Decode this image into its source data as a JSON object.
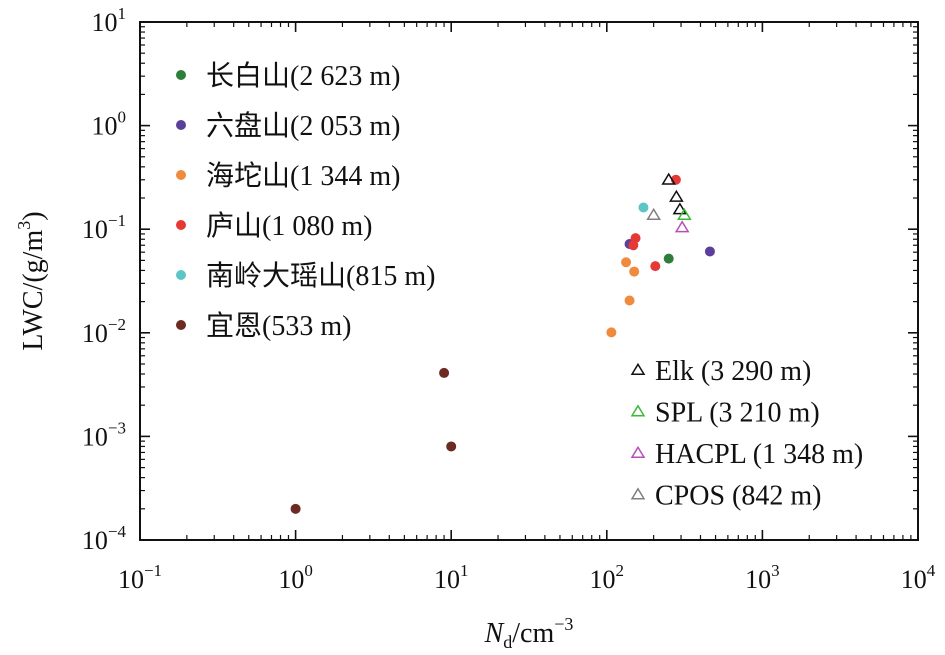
{
  "chart_data": {
    "type": "scatter",
    "xscale": "log",
    "yscale": "log",
    "xlim": [
      0.1,
      10000
    ],
    "ylim": [
      0.0001,
      10
    ],
    "grid": false,
    "xlabel": {
      "main": "N",
      "sub": "d",
      "unit": "/cm",
      "exp": "−3"
    },
    "ylabel": {
      "main": "LWC/(g/m",
      "exp": "3",
      "tail": ")"
    },
    "x_ticks": [
      {
        "base": "10",
        "exp": "−1",
        "value": 0.1
      },
      {
        "base": "10",
        "exp": "0",
        "value": 1
      },
      {
        "base": "10",
        "exp": "1",
        "value": 10
      },
      {
        "base": "10",
        "exp": "2",
        "value": 100
      },
      {
        "base": "10",
        "exp": "3",
        "value": 1000
      },
      {
        "base": "10",
        "exp": "4",
        "value": 10000
      }
    ],
    "y_ticks": [
      {
        "base": "10",
        "exp": "1",
        "value": 10
      },
      {
        "base": "10",
        "exp": "0",
        "value": 1
      },
      {
        "base": "10",
        "exp": "−1",
        "value": 0.1
      },
      {
        "base": "10",
        "exp": "−2",
        "value": 0.01
      },
      {
        "base": "10",
        "exp": "−3",
        "value": 0.001
      },
      {
        "base": "10",
        "exp": "−4",
        "value": 0.0001
      }
    ],
    "legend_circles_position": "top-left",
    "legend_triangles_position": "bottom-right",
    "series": [
      {
        "name": "长白山(2 623 m)",
        "marker": "circle",
        "color": "#2e7d3a",
        "points": [
          [
            250,
            0.052
          ]
        ]
      },
      {
        "name": "六盘山(2 053 m)",
        "marker": "circle",
        "color": "#5b3f99",
        "points": [
          [
            140,
            0.072
          ],
          [
            460,
            0.061
          ]
        ]
      },
      {
        "name": "海坨山(1 344 m)",
        "marker": "circle",
        "color": "#f08a3c",
        "points": [
          [
            107,
            0.0101
          ],
          [
            140,
            0.0205
          ],
          [
            133,
            0.048
          ],
          [
            150,
            0.039
          ]
        ]
      },
      {
        "name": "庐山(1 080 m)",
        "marker": "circle",
        "color": "#e53935",
        "points": [
          [
            278,
            0.3
          ],
          [
            153,
            0.082
          ],
          [
            148,
            0.07
          ],
          [
            205,
            0.044
          ]
        ]
      },
      {
        "name": "南岭大瑶山(815 m)",
        "marker": "circle",
        "color": "#5cc6c6",
        "points": [
          [
            172,
            0.162
          ]
        ]
      },
      {
        "name": "宜恩(533 m)",
        "marker": "circle",
        "color": "#6b2a22",
        "points": [
          [
            9,
            0.0041
          ],
          [
            10,
            0.0008
          ],
          [
            1,
            0.0002
          ]
        ]
      },
      {
        "name": "Elk (3 290 m)",
        "marker": "triangle",
        "color": "#111111",
        "points": [
          [
            250,
            0.3
          ],
          [
            280,
            0.205
          ],
          [
            295,
            0.155
          ]
        ]
      },
      {
        "name": "SPL (3 210 m)",
        "marker": "triangle",
        "color": "#3cb83c",
        "points": [
          [
            315,
            0.137
          ]
        ]
      },
      {
        "name": "HACPL (1 348 m)",
        "marker": "triangle",
        "color": "#b84fb8",
        "points": [
          [
            305,
            0.104
          ]
        ]
      },
      {
        "name": "CPOS (842 m)",
        "marker": "triangle",
        "color": "#808080",
        "points": [
          [
            200,
            0.137
          ]
        ]
      }
    ]
  }
}
